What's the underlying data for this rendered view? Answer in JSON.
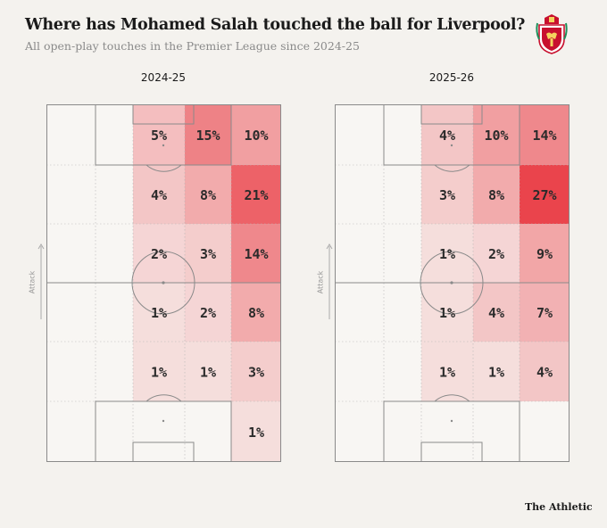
{
  "header": {
    "title": "Where has Mohamed Salah touched the ball for Liverpool?",
    "subtitle": "All open-play touches in the Premier League since 2024-25"
  },
  "crest": {
    "icon": "liverpool-crest-icon",
    "text": "LIVERPOOL",
    "color": "#c8102e"
  },
  "attack_label": "Attack",
  "credit": "The Athletic",
  "colors": {
    "heat": "#e8323b",
    "background": "#f4f2ee",
    "lines": "#b5b5b5"
  },
  "chart_data": [
    {
      "type": "heatmap",
      "title": "2024-25",
      "columns": 3,
      "rows": 6,
      "grid_note_rows_top_to_bottom": "attack at top",
      "values": [
        [
          5,
          15,
          10
        ],
        [
          4,
          8,
          21
        ],
        [
          2,
          3,
          14
        ],
        [
          1,
          2,
          8
        ],
        [
          1,
          1,
          3
        ],
        [
          null,
          null,
          1
        ]
      ],
      "labels": [
        [
          "5%",
          "15%",
          "10%"
        ],
        [
          "4%",
          "8%",
          "21%"
        ],
        [
          "2%",
          "3%",
          "14%"
        ],
        [
          "1%",
          "2%",
          "8%"
        ],
        [
          "1%",
          "1%",
          "3%"
        ],
        [
          "",
          "",
          "1%"
        ]
      ]
    },
    {
      "type": "heatmap",
      "title": "2025-26",
      "columns": 3,
      "rows": 6,
      "values": [
        [
          4,
          10,
          14
        ],
        [
          3,
          8,
          27
        ],
        [
          1,
          2,
          9
        ],
        [
          1,
          4,
          7
        ],
        [
          1,
          1,
          4
        ],
        [
          null,
          null,
          null
        ]
      ],
      "labels": [
        [
          "4%",
          "10%",
          "14%"
        ],
        [
          "3%",
          "8%",
          "27%"
        ],
        [
          "1%",
          "2%",
          "9%"
        ],
        [
          "1%",
          "4%",
          "7%"
        ],
        [
          "1%",
          "1%",
          "4%"
        ],
        [
          "",
          "",
          ""
        ]
      ]
    }
  ]
}
